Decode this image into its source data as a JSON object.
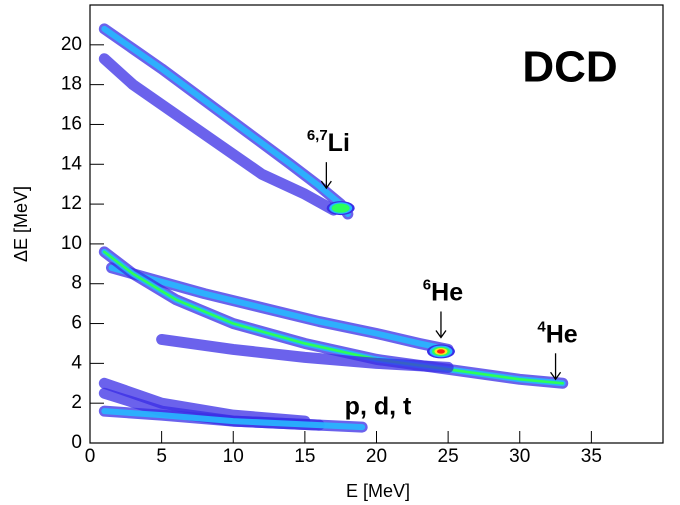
{
  "chart_data": {
    "type": "hist2d",
    "title": "DCD",
    "xlabel": "E [MeV]",
    "ylabel": "ΔE [MeV]",
    "xlim": [
      0,
      40
    ],
    "ylim": [
      0,
      22
    ],
    "xticks": [
      0,
      5,
      10,
      15,
      20,
      25,
      30,
      35
    ],
    "yticks": [
      0,
      2,
      4,
      6,
      8,
      10,
      12,
      14,
      16,
      18,
      20
    ],
    "tracks": [
      {
        "x": [
          1,
          3,
          5,
          8,
          11,
          14,
          16,
          17.5,
          18
        ],
        "y": [
          20.8,
          19.8,
          18.8,
          17.2,
          15.6,
          14,
          12.9,
          12,
          11.5
        ],
        "level": 2
      },
      {
        "x": [
          1,
          3,
          6,
          9,
          12,
          15,
          17
        ],
        "y": [
          19.3,
          18,
          16.5,
          15,
          13.5,
          12.5,
          11.7
        ],
        "level": 1
      },
      {
        "x": [
          1.5,
          4,
          8,
          12,
          16,
          20,
          23,
          25
        ],
        "y": [
          8.8,
          8.3,
          7.5,
          6.8,
          6.1,
          5.5,
          5,
          4.7
        ],
        "level": 2
      },
      {
        "x": [
          1,
          3,
          6,
          10,
          15,
          20,
          25,
          30,
          33
        ],
        "y": [
          9.6,
          8.5,
          7.2,
          6,
          5,
          4.2,
          3.7,
          3.2,
          3
        ],
        "level": 3
      },
      {
        "x": [
          5,
          10,
          15,
          20,
          25
        ],
        "y": [
          5.2,
          4.7,
          4.3,
          4,
          3.8
        ],
        "level": 1
      },
      {
        "x": [
          1,
          5,
          10,
          15
        ],
        "y": [
          3,
          2,
          1.4,
          1.1
        ],
        "level": 1
      },
      {
        "x": [
          1,
          5,
          10,
          16
        ],
        "y": [
          2.5,
          1.6,
          1.1,
          0.9
        ],
        "level": 1
      },
      {
        "x": [
          1,
          5,
          10,
          19
        ],
        "y": [
          1.6,
          1.4,
          1.1,
          0.8
        ],
        "level": 2
      }
    ],
    "hotspots": [
      {
        "x": 24.5,
        "y": 4.6,
        "level": 5
      },
      {
        "x": 17.5,
        "y": 11.8,
        "level": 3
      }
    ],
    "annotations": [
      {
        "sup": "6,7",
        "text": "Li",
        "x": 16.5,
        "y": 12.8
      },
      {
        "sup": "6",
        "text": "He",
        "x": 24.5,
        "y": 5.3
      },
      {
        "sup": "4",
        "text": "He",
        "x": 32.5,
        "y": 3.2
      }
    ],
    "label": "p, d, t"
  }
}
